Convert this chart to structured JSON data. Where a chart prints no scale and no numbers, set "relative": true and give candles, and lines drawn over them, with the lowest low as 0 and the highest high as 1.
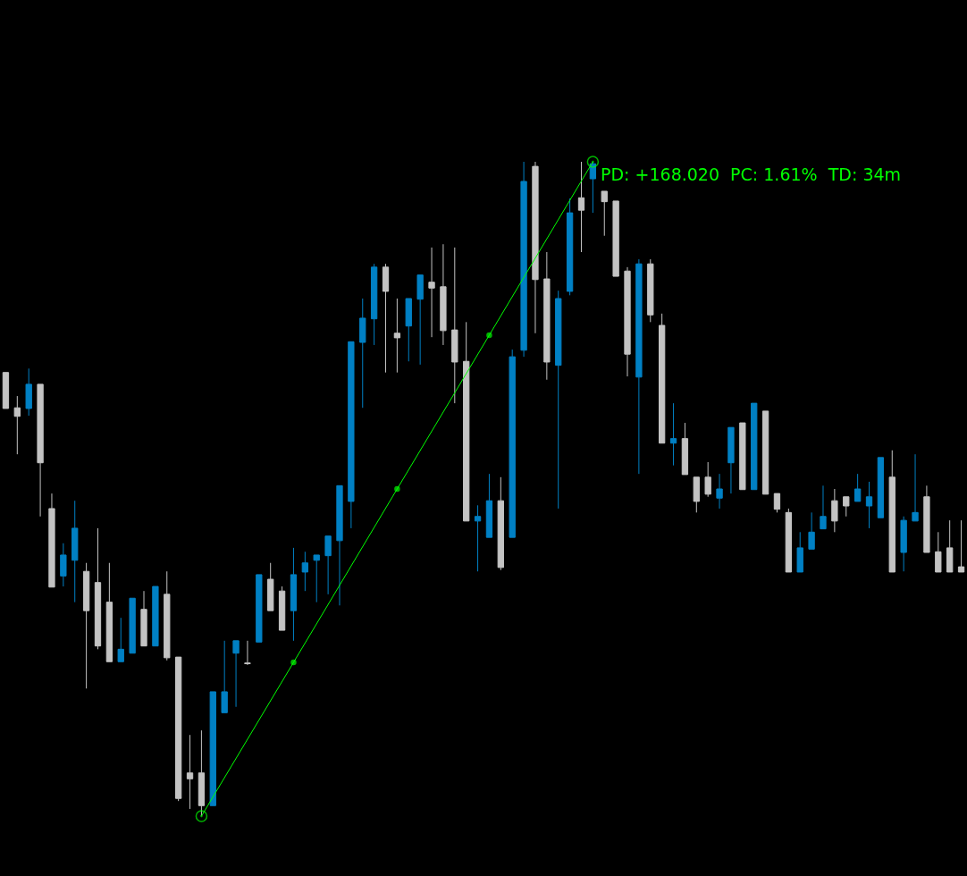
{
  "chart_data": {
    "type": "candlestick",
    "relative": true,
    "categories": [
      null,
      null,
      null,
      null,
      null,
      null,
      null,
      null,
      null,
      null,
      null,
      null,
      null,
      null,
      null,
      null,
      null,
      null,
      null,
      null,
      null,
      null,
      null,
      null,
      null,
      null,
      null,
      null,
      null,
      null,
      null,
      null,
      null,
      null,
      null,
      null,
      null,
      null,
      null,
      null,
      null,
      null,
      null,
      null,
      null,
      null,
      null,
      null,
      null,
      null,
      null,
      null,
      null,
      null,
      null,
      null,
      null,
      null,
      null,
      null,
      null,
      null,
      null,
      null,
      null,
      null,
      null,
      null,
      null,
      null,
      null,
      null,
      null,
      null,
      null,
      null,
      null,
      null,
      null,
      null,
      null,
      null,
      null,
      null
    ],
    "ohlc": [
      [
        0.678,
        0.678,
        0.623,
        0.623
      ],
      [
        0.624,
        0.642,
        0.553,
        0.611
      ],
      [
        0.623,
        0.684,
        0.612,
        0.66
      ],
      [
        0.66,
        0.66,
        0.458,
        0.54
      ],
      [
        0.47,
        0.493,
        0.35,
        0.35
      ],
      [
        0.367,
        0.417,
        0.351,
        0.399
      ],
      [
        0.391,
        0.482,
        0.327,
        0.44
      ],
      [
        0.374,
        0.387,
        0.195,
        0.314
      ],
      [
        0.357,
        0.44,
        0.255,
        0.26
      ],
      [
        0.327,
        0.387,
        0.236,
        0.236
      ],
      [
        0.236,
        0.303,
        0.236,
        0.255
      ],
      [
        0.249,
        0.333,
        0.249,
        0.333
      ],
      [
        0.316,
        0.344,
        0.26,
        0.26
      ],
      [
        0.26,
        0.351,
        0.26,
        0.351
      ],
      [
        0.339,
        0.374,
        0.238,
        0.242
      ],
      [
        0.243,
        0.243,
        0.023,
        0.027
      ],
      [
        0.066,
        0.124,
        0.011,
        0.057
      ],
      [
        0.066,
        0.131,
        0,
        0.016
      ],
      [
        0.016,
        0.19,
        0.016,
        0.19
      ],
      [
        0.158,
        0.268,
        0.158,
        0.19
      ],
      [
        0.249,
        0.268,
        0.167,
        0.268
      ],
      [
        0.234,
        0.268,
        0.231,
        0.233
      ],
      [
        0.266,
        0.369,
        0.266,
        0.369
      ],
      [
        0.362,
        0.387,
        0.314,
        0.314
      ],
      [
        0.344,
        0.351,
        0.284,
        0.284
      ],
      [
        0.314,
        0.41,
        0.268,
        0.369
      ],
      [
        0.373,
        0.404,
        0.344,
        0.387
      ],
      [
        0.391,
        0.399,
        0.327,
        0.399
      ],
      [
        0.398,
        0.428,
        0.339,
        0.428
      ],
      [
        0.421,
        0.505,
        0.322,
        0.505
      ],
      [
        0.481,
        0.725,
        0.44,
        0.725
      ],
      [
        0.724,
        0.791,
        0.624,
        0.761
      ],
      [
        0.76,
        0.844,
        0.72,
        0.839
      ],
      [
        0.839,
        0.844,
        0.678,
        0.802
      ],
      [
        0.738,
        0.791,
        0.678,
        0.731
      ],
      [
        0.749,
        0.791,
        0.695,
        0.791
      ],
      [
        0.79,
        0.827,
        0.69,
        0.827
      ],
      [
        0.816,
        0.869,
        0.732,
        0.807
      ],
      [
        0.809,
        0.874,
        0.72,
        0.742
      ],
      [
        0.743,
        0.869,
        0.631,
        0.694
      ],
      [
        0.695,
        0.755,
        0.451,
        0.451
      ],
      [
        0.451,
        0.475,
        0.374,
        0.458
      ],
      [
        0.426,
        0.523,
        0.426,
        0.482
      ],
      [
        0.482,
        0.518,
        0.376,
        0.38
      ],
      [
        0.426,
        0.713,
        0.426,
        0.702
      ],
      [
        0.712,
        1,
        0.702,
        0.97
      ],
      [
        0.993,
        1,
        0.738,
        0.82
      ],
      [
        0.821,
        0.862,
        0.667,
        0.694
      ],
      [
        0.689,
        0.803,
        0.47,
        0.791
      ],
      [
        0.802,
        0.944,
        0.796,
        0.922
      ],
      [
        0.945,
        1,
        0.862,
        0.926
      ],
      [
        0.974,
        1,
        0.922,
        0.997
      ],
      [
        0.955,
        0.955,
        0.887,
        0.939
      ],
      [
        0.94,
        0.94,
        0.825,
        0.825
      ],
      [
        0.833,
        0.839,
        0.672,
        0.706
      ],
      [
        0.671,
        0.851,
        0.523,
        0.844
      ],
      [
        0.844,
        0.851,
        0.755,
        0.766
      ],
      [
        0.75,
        0.768,
        0.57,
        0.57
      ],
      [
        0.57,
        0.631,
        0.536,
        0.577
      ],
      [
        0.577,
        0.601,
        0.522,
        0.522
      ],
      [
        0.518,
        0.518,
        0.464,
        0.481
      ],
      [
        0.518,
        0.541,
        0.488,
        0.492
      ],
      [
        0.486,
        0.523,
        0.47,
        0.5
      ],
      [
        0.54,
        0.594,
        0.493,
        0.594
      ],
      [
        0.601,
        0.601,
        0.499,
        0.499
      ],
      [
        0.499,
        0.631,
        0.499,
        0.631
      ],
      [
        0.619,
        0.619,
        0.492,
        0.492
      ],
      [
        0.493,
        0.493,
        0.464,
        0.469
      ],
      [
        0.464,
        0.47,
        0.373,
        0.373
      ],
      [
        0.373,
        0.434,
        0.373,
        0.41
      ],
      [
        0.408,
        0.464,
        0.408,
        0.434
      ],
      [
        0.439,
        0.505,
        0.439,
        0.458
      ],
      [
        0.482,
        0.5,
        0.434,
        0.451
      ],
      [
        0.488,
        0.488,
        0.458,
        0.474
      ],
      [
        0.481,
        0.523,
        0.481,
        0.5
      ],
      [
        0.474,
        0.511,
        0.44,
        0.488
      ],
      [
        0.456,
        0.548,
        0.456,
        0.548
      ],
      [
        0.518,
        0.559,
        0.373,
        0.373
      ],
      [
        0.403,
        0.458,
        0.374,
        0.452
      ],
      [
        0.451,
        0.553,
        0.451,
        0.464
      ],
      [
        0.488,
        0.505,
        0.403,
        0.403
      ],
      [
        0.404,
        0.434,
        0.373,
        0.373
      ],
      [
        0.41,
        0.452,
        0.373,
        0.373
      ],
      [
        0.381,
        0.452,
        0.373,
        0.373
      ]
    ],
    "colors": [
      "#c3c3c3",
      "#c3c3c3",
      "#0080c4",
      "#c3c3c3",
      "#c3c3c3",
      "#0080c4",
      "#0080c4",
      "#c3c3c3",
      "#c3c3c3",
      "#c3c3c3",
      "#0080c4",
      "#0080c4",
      "#c3c3c3",
      "#0080c4",
      "#c3c3c3",
      "#c3c3c3",
      "#c3c3c3",
      "#c3c3c3",
      "#0080c4",
      "#0080c4",
      "#0080c4",
      "#c3c3c3",
      "#0080c4",
      "#c3c3c3",
      "#c3c3c3",
      "#0080c4",
      "#0080c4",
      "#0080c4",
      "#0080c4",
      "#0080c4",
      "#0080c4",
      "#0080c4",
      "#0080c4",
      "#c3c3c3",
      "#c3c3c3",
      "#0080c4",
      "#0080c4",
      "#c3c3c3",
      "#c3c3c3",
      "#c3c3c3",
      "#c3c3c3",
      "#0080c4",
      "#0080c4",
      "#c3c3c3",
      "#0080c4",
      "#0080c4",
      "#c3c3c3",
      "#c3c3c3",
      "#0080c4",
      "#0080c4",
      "#c3c3c3",
      "#0080c4",
      "#c3c3c3",
      "#c3c3c3",
      "#c3c3c3",
      "#0080c4",
      "#c3c3c3",
      "#c3c3c3",
      "#0080c4",
      "#c3c3c3",
      "#c3c3c3",
      "#c3c3c3",
      "#0080c4",
      "#0080c4",
      "#c3c3c3",
      "#0080c4",
      "#c3c3c3",
      "#c3c3c3",
      "#c3c3c3",
      "#0080c4",
      "#0080c4",
      "#0080c4",
      "#c3c3c3",
      "#c3c3c3",
      "#0080c4",
      "#0080c4",
      "#0080c4",
      "#c3c3c3",
      "#0080c4",
      "#0080c4",
      "#c3c3c3",
      "#c3c3c3",
      "#c3c3c3",
      "#c3c3c3"
    ],
    "series": [
      {
        "type": "line",
        "color": "#00ff00",
        "marker": "circle",
        "values": [
          null,
          null,
          null,
          null,
          null,
          null,
          null,
          null,
          null,
          null,
          null,
          null,
          null,
          null,
          null,
          null,
          null,
          0,
          null,
          null,
          null,
          null,
          null,
          null,
          null,
          0.235,
          null,
          null,
          null,
          null,
          null,
          null,
          null,
          null,
          0.5,
          null,
          null,
          null,
          null,
          null,
          null,
          null,
          0.735,
          null,
          null,
          null,
          null,
          null,
          null,
          null,
          null,
          1,
          null,
          null,
          null,
          null,
          null,
          null,
          null,
          null,
          null,
          null,
          null,
          null,
          null,
          null,
          null,
          null,
          null,
          null,
          null,
          null,
          null,
          null,
          null,
          null,
          null,
          null,
          null,
          null,
          null,
          null,
          null,
          null
        ]
      }
    ],
    "annotations": [
      "PD: +168.020  PC: 1.61%  TD: 34m"
    ]
  }
}
